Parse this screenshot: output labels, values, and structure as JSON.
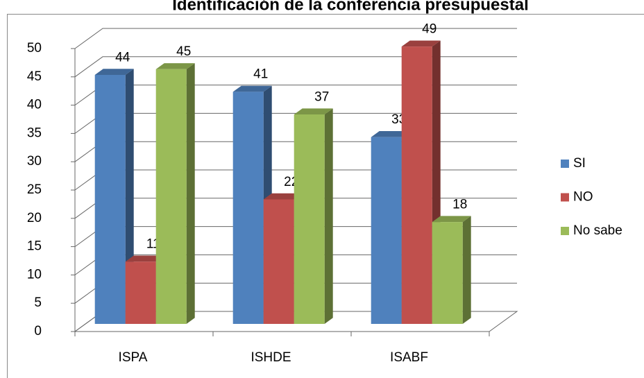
{
  "chart_data": {
    "type": "bar3d",
    "title": "Identificación de la conferencia presupuestal",
    "categories": [
      "ISPA",
      "ISHDE",
      "ISABF"
    ],
    "series": [
      {
        "name": "SI",
        "color": "#4f81bd",
        "values": [
          44,
          41,
          33
        ]
      },
      {
        "name": "NO",
        "color": "#c0504d",
        "values": [
          11,
          22,
          49
        ]
      },
      {
        "name": "No sabe",
        "color": "#9bbb59",
        "values": [
          45,
          37,
          18
        ]
      }
    ],
    "ylim": [
      0,
      50
    ],
    "yticks": [
      0,
      5,
      10,
      15,
      20,
      25,
      30,
      35,
      40,
      45,
      50
    ],
    "grid": true,
    "legend": "right"
  }
}
